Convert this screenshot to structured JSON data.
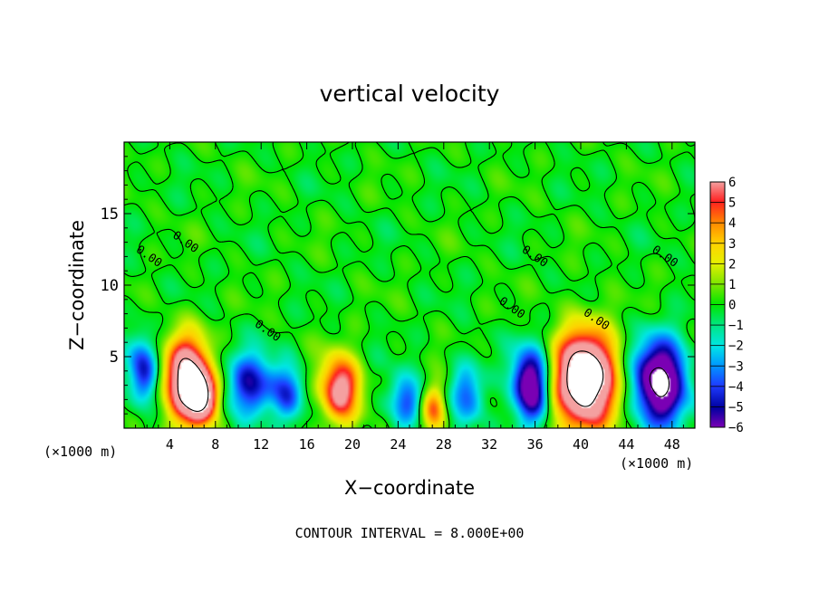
{
  "chart_data": {
    "type": "heatmap",
    "title": "vertical velocity",
    "xlabel": "X−coordinate",
    "ylabel": "Z−coordinate",
    "x_unit_left": "(×1000 m)",
    "x_unit_right": "(×1000 m)",
    "footer": "CONTOUR INTERVAL = 8.000E+00",
    "xlim": [
      0,
      50
    ],
    "ylim": [
      0,
      20
    ],
    "x_ticks": [
      4,
      8,
      12,
      16,
      20,
      24,
      28,
      32,
      36,
      40,
      44,
      48
    ],
    "y_ticks": [
      5,
      10,
      15
    ],
    "colorbar": {
      "range": [
        -6,
        6
      ],
      "ticks": [
        6,
        5,
        4,
        3,
        2,
        1,
        0,
        -1,
        -2,
        -3,
        -4,
        -5,
        -6
      ],
      "tick_labels": [
        "6",
        "5",
        "4",
        "3",
        "2",
        "1",
        "0",
        "−1",
        "−2",
        "−3",
        "−4",
        "−5",
        "−6"
      ]
    },
    "contour_labels": [
      {
        "text": "0.00",
        "x": 5.2,
        "z": 12.8
      },
      {
        "text": "0.00",
        "x": 2.0,
        "z": 11.8
      },
      {
        "text": "0.00",
        "x": 12.4,
        "z": 6.6
      },
      {
        "text": "0.00",
        "x": 35.8,
        "z": 11.8
      },
      {
        "text": "0.00",
        "x": 33.8,
        "z": 8.2
      },
      {
        "text": "0.00",
        "x": 41.2,
        "z": 7.4
      },
      {
        "text": "0.00",
        "x": 47.2,
        "z": 11.8
      }
    ],
    "features": [
      {
        "kind": "updraft",
        "x": 5.4,
        "z": 3.4,
        "peak": 9,
        "sx": 1.4,
        "sz": 2.1
      },
      {
        "kind": "updraft",
        "x": 6.8,
        "z": 2.2,
        "peak": 7,
        "sx": 0.9,
        "sz": 1.2
      },
      {
        "kind": "updraft",
        "x": 18.8,
        "z": 2.8,
        "peak": 7,
        "sx": 1.2,
        "sz": 1.6
      },
      {
        "kind": "updraft",
        "x": 27.0,
        "z": 1.4,
        "peak": 4.5,
        "sx": 0.8,
        "sz": 1.2
      },
      {
        "kind": "updraft",
        "x": 40.3,
        "z": 3.4,
        "peak": 11,
        "sx": 1.9,
        "sz": 2.4
      },
      {
        "kind": "downdraft",
        "x": 1.6,
        "z": 4.0,
        "peak": -5,
        "sx": 0.9,
        "sz": 1.6
      },
      {
        "kind": "downdraft",
        "x": 11.0,
        "z": 3.0,
        "peak": -5,
        "sx": 1.5,
        "sz": 1.6
      },
      {
        "kind": "downdraft",
        "x": 14.2,
        "z": 2.6,
        "peak": -3.5,
        "sx": 1.0,
        "sz": 1.4
      },
      {
        "kind": "downdraft",
        "x": 24.5,
        "z": 2.0,
        "peak": -4,
        "sx": 1.1,
        "sz": 1.3
      },
      {
        "kind": "downdraft",
        "x": 30.0,
        "z": 2.5,
        "peak": -3.5,
        "sx": 1.0,
        "sz": 1.6
      },
      {
        "kind": "downdraft",
        "x": 35.5,
        "z": 3.0,
        "peak": -8,
        "sx": 1.1,
        "sz": 1.8
      },
      {
        "kind": "downdraft",
        "x": 46.8,
        "z": 3.2,
        "peak": -9,
        "sx": 1.6,
        "sz": 2.1
      }
    ]
  }
}
